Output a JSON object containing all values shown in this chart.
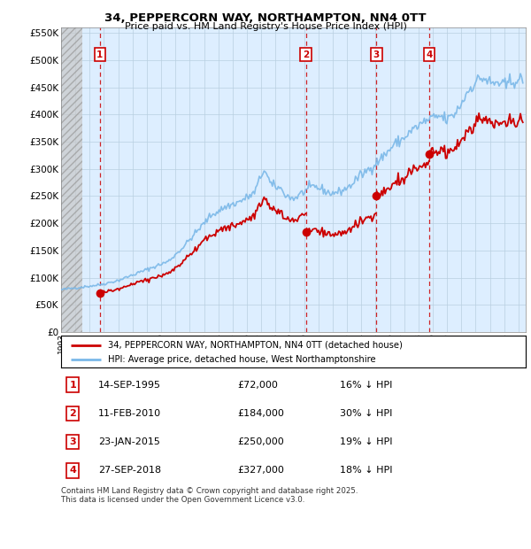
{
  "title1": "34, PEPPERCORN WAY, NORTHAMPTON, NN4 0TT",
  "title2": "Price paid vs. HM Land Registry's House Price Index (HPI)",
  "ylim": [
    0,
    560000
  ],
  "yticks": [
    0,
    50000,
    100000,
    150000,
    200000,
    250000,
    300000,
    350000,
    400000,
    450000,
    500000,
    550000
  ],
  "ytick_labels": [
    "£0",
    "£50K",
    "£100K",
    "£150K",
    "£200K",
    "£250K",
    "£300K",
    "£350K",
    "£400K",
    "£450K",
    "£500K",
    "£550K"
  ],
  "transactions": [
    {
      "num": 1,
      "date_dec": 1995.708,
      "price": 72000
    },
    {
      "num": 2,
      "date_dec": 2010.117,
      "price": 184000
    },
    {
      "num": 3,
      "date_dec": 2015.058,
      "price": 250000
    },
    {
      "num": 4,
      "date_dec": 2018.742,
      "price": 327000
    }
  ],
  "legend_line1": "34, PEPPERCORN WAY, NORTHAMPTON, NN4 0TT (detached house)",
  "legend_line2": "HPI: Average price, detached house, West Northamptonshire",
  "footer": "Contains HM Land Registry data © Crown copyright and database right 2025.\nThis data is licensed under the Open Government Licence v3.0.",
  "hpi_color": "#7ab8e8",
  "sold_color": "#cc0000",
  "vline_color": "#cc0000",
  "grid_color": "#b8cfe0",
  "plot_bg": "#ddeeff",
  "hatch_color": "#c8c8c8",
  "xmin": 1993.0,
  "xmax": 2025.5,
  "tx_display": [
    [
      "1",
      "14-SEP-1995",
      "£72,000",
      "16% ↓ HPI"
    ],
    [
      "2",
      "11-FEB-2010",
      "£184,000",
      "30% ↓ HPI"
    ],
    [
      "3",
      "23-JAN-2015",
      "£250,000",
      "19% ↓ HPI"
    ],
    [
      "4",
      "27-SEP-2018",
      "£327,000",
      "18% ↓ HPI"
    ]
  ]
}
